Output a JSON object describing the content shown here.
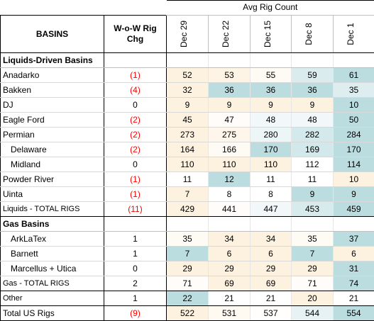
{
  "chart_data": {
    "type": "table",
    "header_group": "Avg Rig Count",
    "col_basins": "BASINS",
    "col_change": "W-o-W Rig Chg",
    "dates": [
      "Dec 29",
      "Dec 22",
      "Dec 15",
      "Dec 8",
      "Dec 1"
    ],
    "sections": [
      {
        "title": "Liquids-Driven Basins",
        "rows": [
          {
            "name": "Anadarko",
            "chg": "(1)",
            "values": [
              52,
              53,
              55,
              59,
              61
            ]
          },
          {
            "name": "Bakken",
            "chg": "(4)",
            "values": [
              32,
              36,
              36,
              36,
              35
            ]
          },
          {
            "name": "DJ",
            "chg": "0",
            "values": [
              9,
              9,
              9,
              9,
              10
            ]
          },
          {
            "name": "Eagle Ford",
            "chg": "(2)",
            "values": [
              45,
              47,
              48,
              48,
              50
            ]
          },
          {
            "name": "Permian",
            "chg": "(2)",
            "values": [
              273,
              275,
              280,
              282,
              284
            ]
          },
          {
            "name": "Delaware",
            "chg": "(2)",
            "values": [
              164,
              166,
              170,
              169,
              170
            ],
            "indent": true
          },
          {
            "name": "Midland",
            "chg": "0",
            "values": [
              110,
              110,
              110,
              112,
              114
            ],
            "indent": true
          },
          {
            "name": "Powder River",
            "chg": "(1)",
            "values": [
              11,
              12,
              11,
              11,
              10
            ]
          },
          {
            "name": "Uinta",
            "chg": "(1)",
            "values": [
              7,
              8,
              8,
              9,
              9
            ]
          }
        ],
        "total": {
          "prefix": "Liquids",
          "suffix": " - TOTAL RIGS",
          "chg": "(11)",
          "values": [
            429,
            441,
            447,
            453,
            459
          ]
        }
      },
      {
        "title": "Gas Basins",
        "rows": [
          {
            "name": "ArkLaTex",
            "chg": "1",
            "values": [
              35,
              34,
              34,
              35,
              37
            ],
            "indent": true
          },
          {
            "name": "Barnett",
            "chg": "1",
            "values": [
              7,
              6,
              6,
              7,
              6
            ],
            "indent": true
          },
          {
            "name": "Marcellus + Utica",
            "chg": "0",
            "values": [
              29,
              29,
              29,
              29,
              31
            ],
            "indent": true
          }
        ],
        "total": {
          "prefix": "Gas",
          "suffix": " - TOTAL RIGS",
          "chg": "2",
          "values": [
            71,
            69,
            69,
            71,
            74
          ]
        }
      }
    ],
    "other": {
      "name": "Other",
      "chg": "1",
      "values": [
        22,
        21,
        21,
        20,
        21
      ]
    },
    "grand_total": {
      "name": "Total US Rigs",
      "chg": "(9)",
      "values": [
        522,
        531,
        537,
        544,
        554
      ]
    },
    "heat_colors": {
      "low": "#bcdde0",
      "high": "#fdf1df",
      "mid": "#ffffff"
    },
    "negative_color": "#ff0000"
  }
}
